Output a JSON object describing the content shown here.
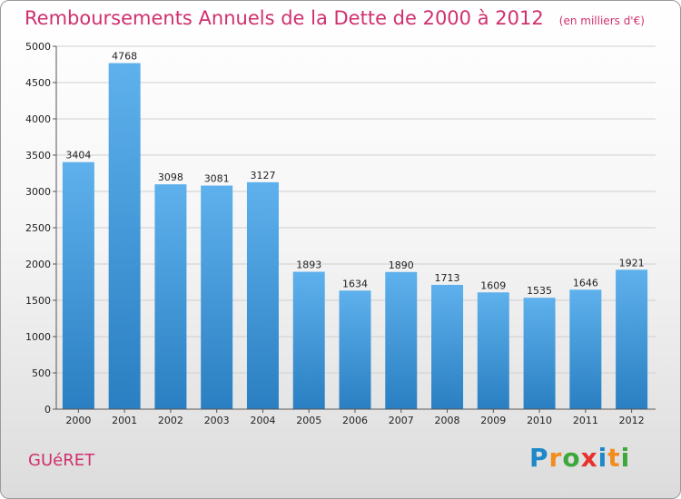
{
  "header": {
    "title": "Remboursements Annuels de la Dette de 2000 à 2012",
    "subtitle": "(en milliers d'€)"
  },
  "footer": {
    "city": "GUéRET",
    "logo": {
      "letters": [
        "P",
        "r",
        "o",
        "x",
        "i",
        "t",
        "i"
      ],
      "colors": [
        "#1e88c8",
        "#f28c1e",
        "#3da83a",
        "#e8312f",
        "#1e88c8",
        "#f28c1e",
        "#3da83a"
      ]
    }
  },
  "chart_data": {
    "type": "bar",
    "title": "Remboursements Annuels de la Dette de 2000 à 2012",
    "subtitle": "(en milliers d'€)",
    "xlabel": "",
    "ylabel": "",
    "categories": [
      "2000",
      "2001",
      "2002",
      "2003",
      "2004",
      "2005",
      "2006",
      "2007",
      "2008",
      "2009",
      "2010",
      "2011",
      "2012"
    ],
    "values": [
      3404,
      4768,
      3098,
      3081,
      3127,
      1893,
      1634,
      1890,
      1713,
      1609,
      1535,
      1646,
      1921
    ],
    "ylim": [
      0,
      5000
    ],
    "yticks": [
      0,
      500,
      1000,
      1500,
      2000,
      2500,
      3000,
      3500,
      4000,
      4500,
      5000
    ],
    "grid": true,
    "legend": "none",
    "colors": {
      "bar_top": "#5eb1ec",
      "bar_bottom": "#2a7fc2",
      "title": "#d0306e"
    }
  }
}
